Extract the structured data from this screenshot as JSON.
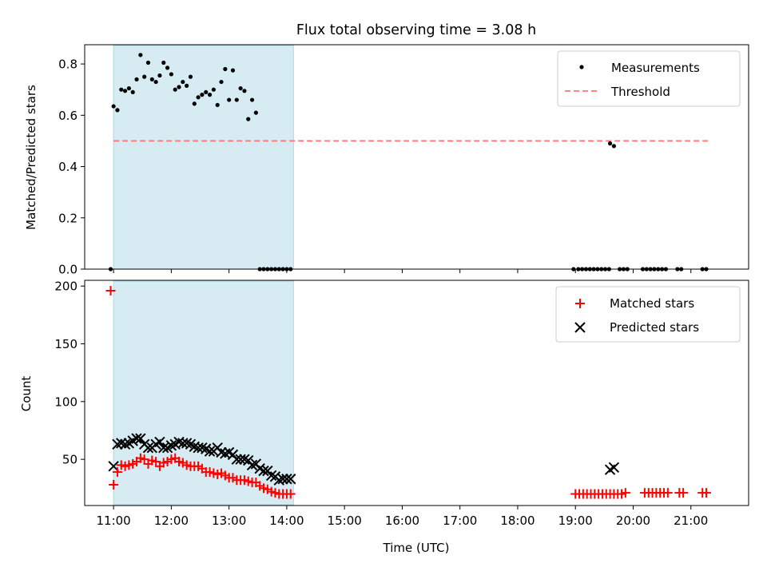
{
  "title": "Flux total observing time = 3.08 h",
  "colors": {
    "measurement": "#000000",
    "threshold": "#ff7777",
    "matched": "#ff0000",
    "predicted": "#000000",
    "span": "#add8e6"
  },
  "chart_data": [
    {
      "type": "scatter",
      "ylabel": "Matched/Predicted stars",
      "ylim": [
        0,
        0.875
      ],
      "yticks": [
        0,
        0.2,
        0.4,
        0.6,
        0.8
      ],
      "ytick_labels": [
        "0.0",
        "0.2",
        "0.4",
        "0.6",
        "0.8"
      ],
      "legend_position": "top-right",
      "legend": [
        "Measurements",
        "Threshold"
      ],
      "observing_span": [
        "11:00",
        "14:07"
      ],
      "threshold": {
        "value": 0.5,
        "x": [
          "11:00",
          "21:20"
        ]
      },
      "series": [
        {
          "name": "Measurements",
          "style": "dot",
          "x": [
            "10:57",
            "11:00",
            "11:04",
            "11:08",
            "11:12",
            "11:16",
            "11:20",
            "11:24",
            "11:28",
            "11:32",
            "11:36",
            "11:40",
            "11:44",
            "11:48",
            "11:52",
            "11:56",
            "12:00",
            "12:04",
            "12:08",
            "12:12",
            "12:16",
            "12:20",
            "12:24",
            "12:28",
            "12:32",
            "12:36",
            "12:40",
            "12:44",
            "12:48",
            "12:52",
            "12:56",
            "13:00",
            "13:04",
            "13:08",
            "13:12",
            "13:16",
            "13:20",
            "13:24",
            "13:28",
            "13:32",
            "13:36",
            "13:40",
            "13:44",
            "13:48",
            "13:52",
            "13:56",
            "14:00",
            "14:04",
            "19:36",
            "19:40",
            "18:58",
            "19:03",
            "19:07",
            "19:11",
            "19:15",
            "19:19",
            "19:23",
            "19:27",
            "19:31",
            "19:35",
            "19:46",
            "19:50",
            "19:54",
            "20:10",
            "20:14",
            "20:18",
            "20:22",
            "20:26",
            "20:30",
            "20:34",
            "20:46",
            "20:50",
            "21:12",
            "21:16"
          ],
          "y": [
            0.0,
            0.635,
            0.62,
            0.7,
            0.695,
            0.705,
            0.69,
            0.74,
            0.835,
            0.75,
            0.805,
            0.74,
            0.73,
            0.755,
            0.805,
            0.785,
            0.76,
            0.7,
            0.71,
            0.73,
            0.715,
            0.75,
            0.645,
            0.67,
            0.68,
            0.69,
            0.68,
            0.7,
            0.64,
            0.73,
            0.78,
            0.66,
            0.775,
            0.66,
            0.705,
            0.695,
            0.585,
            0.66,
            0.61,
            0.0,
            0.0,
            0.0,
            0.0,
            0.0,
            0.0,
            0.0,
            0.0,
            0.0,
            0.49,
            0.48,
            0.0,
            0.0,
            0.0,
            0.0,
            0.0,
            0.0,
            0.0,
            0.0,
            0.0,
            0.0,
            0.0,
            0.0,
            0.0,
            0.0,
            0.0,
            0.0,
            0.0,
            0.0,
            0.0,
            0.0,
            0.0,
            0.0,
            0.0,
            0.0
          ]
        }
      ]
    },
    {
      "type": "scatter",
      "xlabel": "Time (UTC)",
      "ylabel": "Count",
      "ylim": [
        10,
        205
      ],
      "yticks": [
        50,
        100,
        150,
        200
      ],
      "ytick_labels": [
        "50",
        "100",
        "150",
        "200"
      ],
      "xlim": [
        "10:30",
        "22:00"
      ],
      "xticks": [
        "11:00",
        "12:00",
        "13:00",
        "14:00",
        "15:00",
        "16:00",
        "17:00",
        "18:00",
        "19:00",
        "20:00",
        "21:00"
      ],
      "legend_position": "top-right",
      "legend": [
        "Matched stars",
        "Predicted stars"
      ],
      "observing_span": [
        "11:00",
        "14:07"
      ],
      "series": [
        {
          "name": "Matched stars",
          "style": "plus",
          "x": [
            "10:57",
            "11:00",
            "11:04",
            "11:08",
            "11:12",
            "11:16",
            "11:20",
            "11:24",
            "11:28",
            "11:32",
            "11:36",
            "11:40",
            "11:44",
            "11:48",
            "11:52",
            "11:56",
            "12:00",
            "12:04",
            "12:08",
            "12:12",
            "12:16",
            "12:20",
            "12:24",
            "12:28",
            "12:32",
            "12:36",
            "12:40",
            "12:44",
            "12:48",
            "12:52",
            "12:56",
            "13:00",
            "13:04",
            "13:08",
            "13:12",
            "13:16",
            "13:20",
            "13:24",
            "13:28",
            "13:32",
            "13:36",
            "13:40",
            "13:44",
            "13:48",
            "13:52",
            "13:56",
            "14:00",
            "14:04",
            "19:00",
            "19:04",
            "19:08",
            "19:12",
            "19:16",
            "19:20",
            "19:24",
            "19:28",
            "19:32",
            "19:36",
            "19:40",
            "19:44",
            "19:48",
            "19:52",
            "20:12",
            "20:16",
            "20:20",
            "20:24",
            "20:28",
            "20:32",
            "20:36",
            "20:48",
            "20:52",
            "21:12",
            "21:16"
          ],
          "y": [
            196,
            28,
            39,
            45,
            44,
            45,
            46,
            48,
            51,
            50,
            46,
            49,
            48,
            44,
            47,
            48,
            50,
            51,
            48,
            47,
            45,
            44,
            44,
            44,
            42,
            39,
            39,
            38,
            37,
            38,
            36,
            34,
            34,
            32,
            32,
            32,
            31,
            30,
            30,
            27,
            25,
            24,
            22,
            21,
            20,
            20,
            20,
            20,
            20,
            20,
            20,
            20,
            20,
            20,
            20,
            20,
            20,
            20,
            20,
            20,
            20,
            21,
            21,
            21,
            21,
            21,
            21,
            21,
            21,
            21,
            21,
            21,
            21
          ]
        },
        {
          "name": "Predicted stars",
          "style": "x",
          "x": [
            "11:00",
            "11:04",
            "11:08",
            "11:12",
            "11:16",
            "11:20",
            "11:24",
            "11:28",
            "11:32",
            "11:36",
            "11:40",
            "11:44",
            "11:48",
            "11:52",
            "11:56",
            "12:00",
            "12:04",
            "12:08",
            "12:12",
            "12:16",
            "12:20",
            "12:24",
            "12:28",
            "12:32",
            "12:36",
            "12:40",
            "12:44",
            "12:48",
            "12:52",
            "12:56",
            "13:00",
            "13:04",
            "13:08",
            "13:12",
            "13:16",
            "13:20",
            "13:24",
            "13:28",
            "13:32",
            "13:36",
            "13:40",
            "13:44",
            "13:48",
            "13:52",
            "13:56",
            "14:00",
            "14:04",
            "19:36",
            "19:40"
          ],
          "y": [
            44,
            63,
            64,
            63,
            64,
            66,
            68,
            68,
            63,
            60,
            60,
            63,
            65,
            60,
            60,
            62,
            63,
            65,
            64,
            64,
            63,
            61,
            60,
            60,
            59,
            57,
            57,
            60,
            56,
            55,
            56,
            54,
            50,
            50,
            50,
            49,
            45,
            46,
            42,
            40,
            40,
            36,
            35,
            32,
            33,
            33,
            33,
            41,
            43
          ]
        }
      ]
    }
  ]
}
